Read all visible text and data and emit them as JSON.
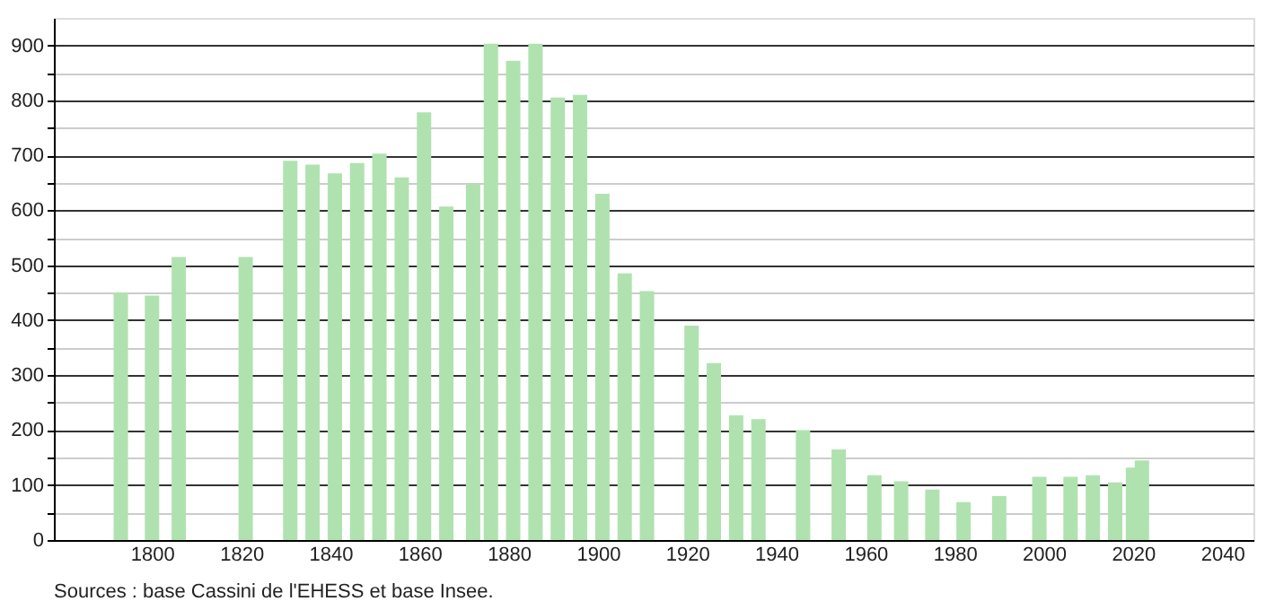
{
  "chart_data": {
    "type": "bar",
    "x": [
      1793,
      1800,
      1806,
      1821,
      1831,
      1836,
      1841,
      1846,
      1851,
      1856,
      1861,
      1866,
      1872,
      1876,
      1881,
      1886,
      1891,
      1896,
      1901,
      1906,
      1911,
      1921,
      1926,
      1931,
      1936,
      1946,
      1954,
      1962,
      1968,
      1975,
      1982,
      1990,
      1999,
      2006,
      2011,
      2016,
      2020,
      2022
    ],
    "values": [
      450,
      445,
      515,
      515,
      690,
      683,
      667,
      686,
      703,
      660,
      778,
      607,
      648,
      903,
      872,
      903,
      805,
      810,
      630,
      485,
      453,
      390,
      322,
      227,
      220,
      200,
      165,
      118,
      107,
      92,
      69,
      80,
      115,
      115,
      118,
      105,
      132,
      145
    ],
    "color": "#b0e2b0",
    "xlim": [
      1780,
      2045
    ],
    "xticks": [
      1800,
      1820,
      1840,
      1860,
      1880,
      1900,
      1920,
      1940,
      1960,
      1980,
      2000,
      2020,
      2040
    ],
    "ylim": [
      0,
      950
    ],
    "yticks": [
      0,
      {
        "value": 50,
        "label": null
      },
      100,
      {
        "value": 150,
        "label": null
      },
      200,
      {
        "value": 250,
        "label": null
      },
      300,
      {
        "value": 350,
        "label": null
      },
      400,
      {
        "value": 450,
        "label": null
      },
      500,
      {
        "value": 550,
        "label": null
      },
      600,
      {
        "value": 650,
        "label": null
      },
      700,
      {
        "value": 750,
        "label": null
      },
      800,
      {
        "value": 850,
        "label": null
      },
      900
    ],
    "grid": "y",
    "annotations": [
      "Sources : base Cassini de l'EHESS et base Insee."
    ]
  }
}
